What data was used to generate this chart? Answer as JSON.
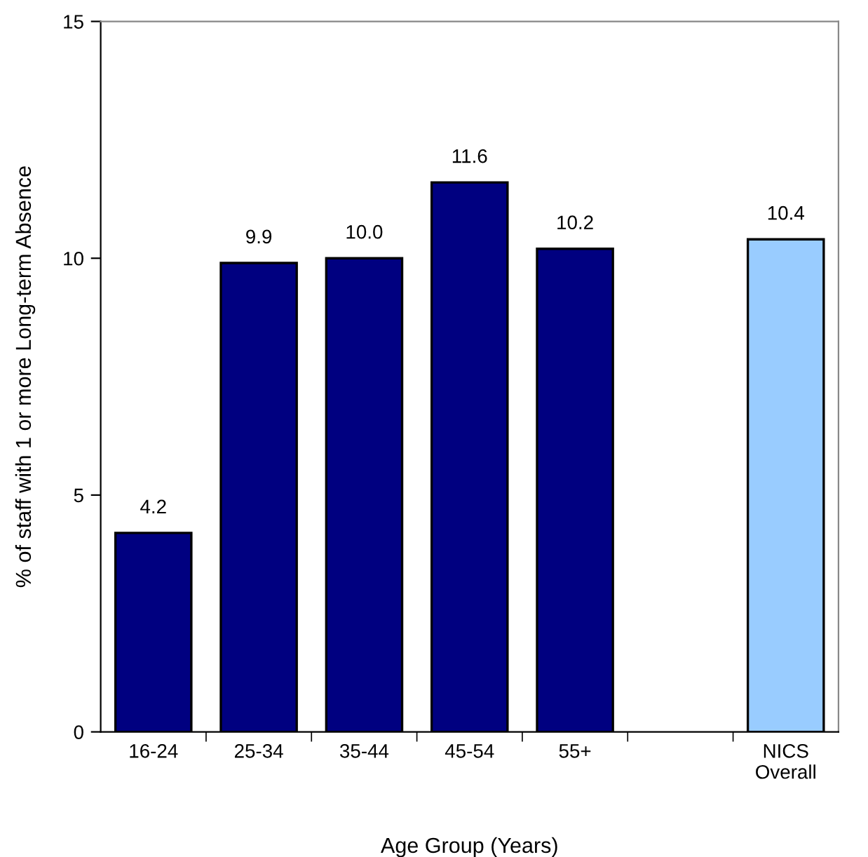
{
  "chart_data": {
    "type": "bar",
    "xlabel": "Age Group (Years)",
    "ylabel": "% of staff with 1 or more Long-term Absence",
    "categories": [
      "16-24",
      "25-34",
      "35-44",
      "45-54",
      "55+",
      null,
      "NICS\nOverall"
    ],
    "values": [
      4.2,
      9.9,
      10.0,
      11.6,
      10.2,
      null,
      10.4
    ],
    "colors": [
      "#000080",
      "#000080",
      "#000080",
      "#000080",
      "#000080",
      null,
      "#99ccff"
    ],
    "value_labels": [
      "4.2",
      "9.9",
      "10.0",
      "11.6",
      "10.2",
      null,
      "10.4"
    ],
    "ylim": [
      0,
      15
    ],
    "yticks": [
      0,
      5,
      10,
      15
    ],
    "grid": false,
    "legend": false
  }
}
